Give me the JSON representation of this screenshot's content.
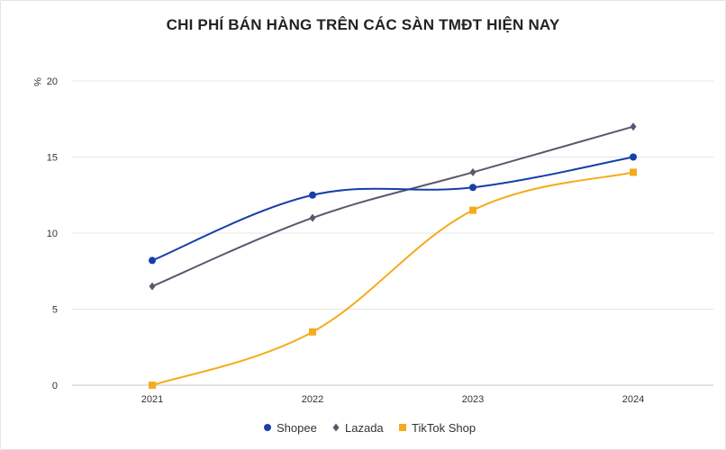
{
  "chart_data": {
    "type": "line",
    "title": "CHI PHÍ BÁN HÀNG TRÊN CÁC SÀN TMĐT HIỆN NAY",
    "ylabel": "%",
    "xlabel": "",
    "categories": [
      "2021",
      "2022",
      "2023",
      "2024"
    ],
    "ylim": [
      0,
      20
    ],
    "yticks": [
      0,
      5,
      10,
      15,
      20
    ],
    "grid": true,
    "legend": "bottom",
    "series": [
      {
        "name": "Shopee",
        "values": [
          8.2,
          12.5,
          13.0,
          15.0
        ],
        "color": "#1540a8",
        "marker": "circle"
      },
      {
        "name": "Lazada",
        "values": [
          6.5,
          11.0,
          14.0,
          17.0
        ],
        "color": "#5a5770",
        "marker": "diamond"
      },
      {
        "name": "TikTok Shop",
        "values": [
          0.0,
          3.5,
          11.5,
          14.0
        ],
        "color": "#f5ab1e",
        "marker": "square"
      }
    ]
  }
}
